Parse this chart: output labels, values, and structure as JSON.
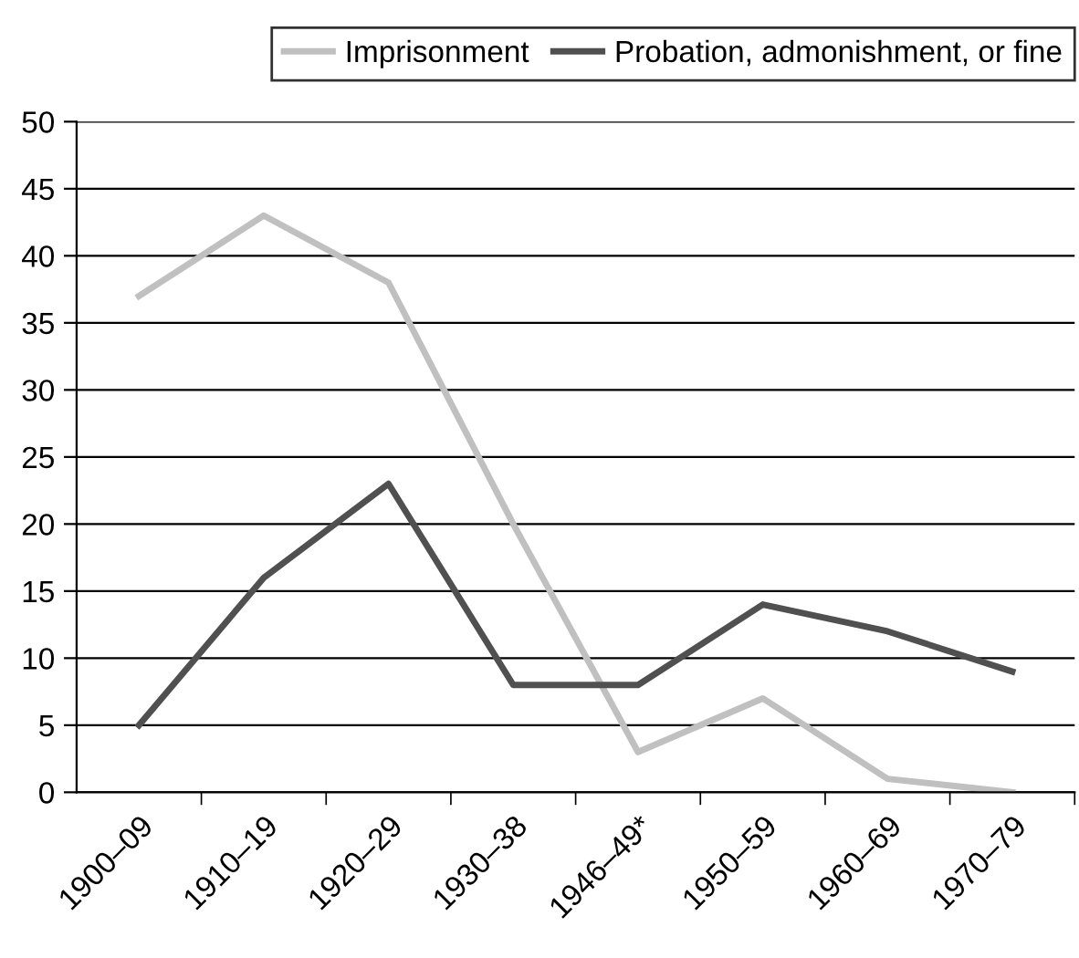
{
  "chart_data": {
    "type": "line",
    "categories": [
      "1900–09",
      "1910–19",
      "1920–29",
      "1930–38",
      "1946–49*",
      "1950–59",
      "1960–69",
      "1970–79"
    ],
    "series": [
      {
        "name": "Imprisonment",
        "color": "#c0c0c0",
        "values": [
          37,
          43,
          38,
          20,
          3,
          7,
          1,
          0
        ]
      },
      {
        "name": "Probation, admonishment, or fine",
        "color": "#505050",
        "values": [
          5,
          16,
          23,
          8,
          8,
          14,
          12,
          9
        ]
      }
    ],
    "ylim": [
      0,
      50
    ],
    "yticks": [
      0,
      5,
      10,
      15,
      20,
      25,
      30,
      35,
      40,
      45,
      50
    ],
    "grid": "y",
    "legend": "top right",
    "marker": "none",
    "line_style": "solid"
  }
}
